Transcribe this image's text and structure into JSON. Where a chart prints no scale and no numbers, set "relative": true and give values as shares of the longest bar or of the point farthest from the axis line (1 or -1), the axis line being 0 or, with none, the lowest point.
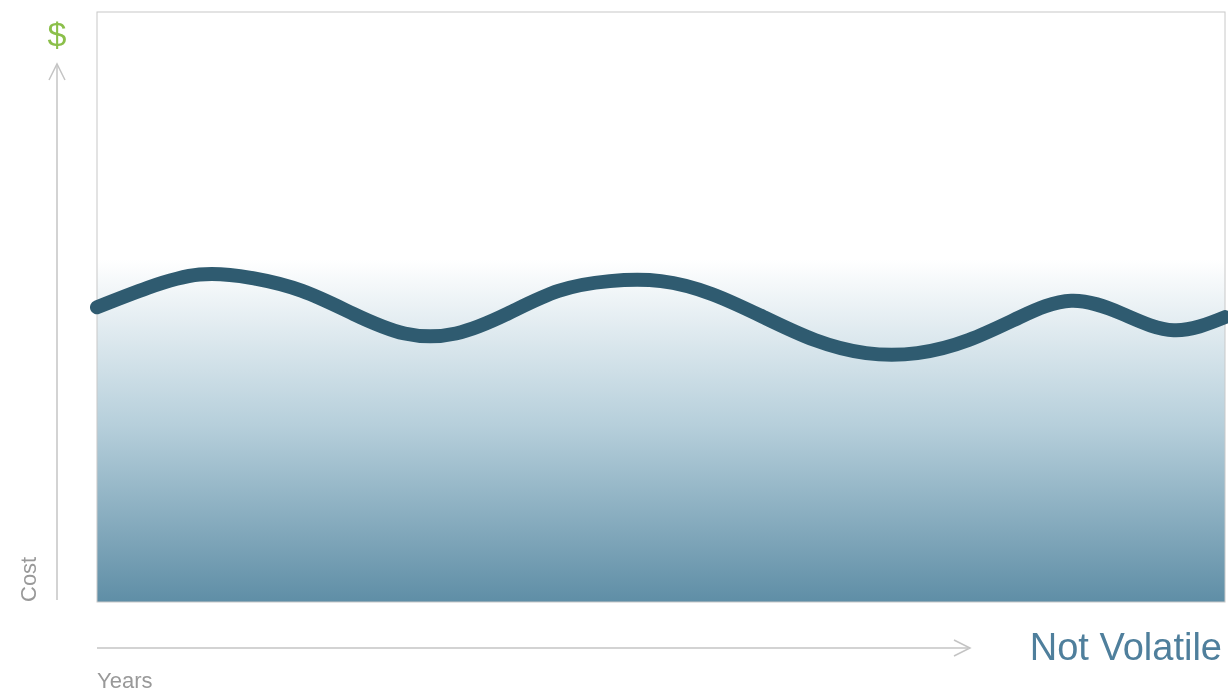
{
  "chart_data": {
    "type": "line",
    "relative": true,
    "xlabel": "Years",
    "ylabel": "Cost",
    "annotations": [
      "$",
      "Not Volatile"
    ],
    "categories": [
      null,
      null,
      null,
      null,
      null,
      null,
      null,
      null,
      null,
      null,
      null,
      null,
      null,
      null,
      null,
      null,
      null,
      null,
      null,
      null,
      null,
      null,
      null
    ],
    "series": [
      {
        "color": "#2f5b70",
        "values": [
          0.9,
          0.96,
          1.0,
          0.99,
          0.95,
          0.88,
          0.82,
          0.82,
          0.88,
          0.95,
          0.98,
          0.98,
          0.94,
          0.87,
          0.8,
          0.76,
          0.76,
          0.8,
          0.87,
          0.92,
          0.88,
          0.83,
          0.87
        ]
      }
    ],
    "line_style": "solid"
  }
}
